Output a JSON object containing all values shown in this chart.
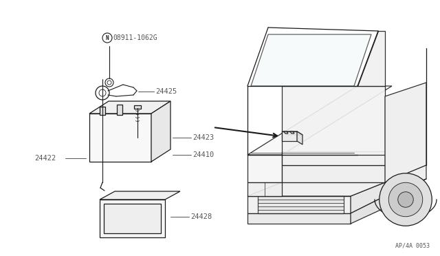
{
  "bg_color": "#ffffff",
  "line_color": "#1a1a1a",
  "fig_width": 6.4,
  "fig_height": 3.72,
  "dpi": 100,
  "diagram_code": "AP/4A 0053",
  "label_color": "#555555"
}
